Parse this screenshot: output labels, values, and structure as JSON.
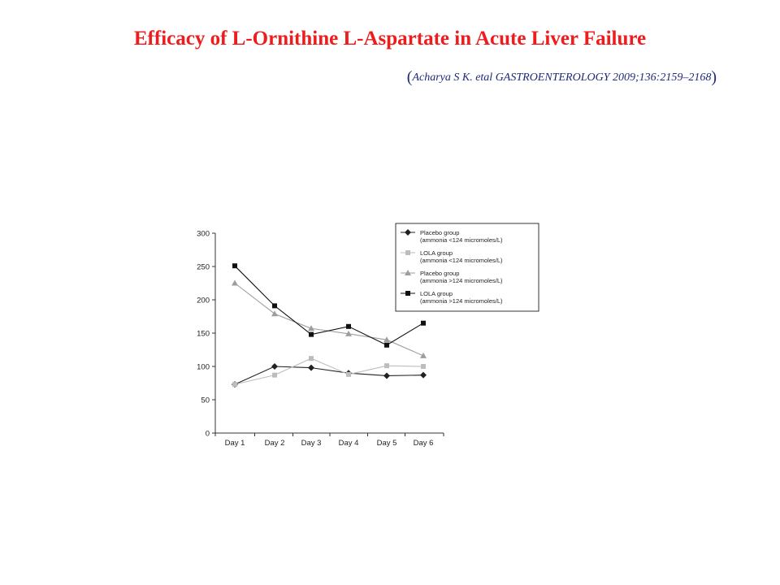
{
  "slide": {
    "title": "Efficacy of L-Ornithine L-Aspartate in Acute Liver Failure",
    "citation": "Acharya S K. etal GASTROENTEROLOGY 2009;136:2159–2168"
  },
  "chart_data": {
    "type": "line",
    "categories": [
      "Day 1",
      "Day 2",
      "Day 3",
      "Day 4",
      "Day 5",
      "Day 6"
    ],
    "ylim": [
      0,
      300
    ],
    "yticks": [
      0,
      50,
      100,
      150,
      200,
      250,
      300
    ],
    "grid": false,
    "legend": "top-right",
    "series": [
      {
        "name": "Placebo group (ammonia <124 micromoles/L)",
        "name_line1": "Placebo group",
        "name_line2": "(ammonia <124 micromoles/L)",
        "marker": "diamond",
        "color": "#222222",
        "values": [
          73,
          100,
          98,
          90,
          86,
          87
        ]
      },
      {
        "name": "LOLA group (ammonia <124 micromoles/L)",
        "name_line1": "LOLA group",
        "name_line2": "(ammonia <124 micromoles/L)",
        "marker": "square",
        "color": "#bdbdbd",
        "values": [
          73,
          87,
          112,
          88,
          101,
          100
        ]
      },
      {
        "name": "Placebo group (ammonia >124 micromoles/L)",
        "name_line1": "Placebo group",
        "name_line2": "(ammonia >124 micromoles/L)",
        "marker": "triangle",
        "color": "#9e9e9e",
        "values": [
          225,
          179,
          157,
          149,
          140,
          116
        ]
      },
      {
        "name": "LOLA group (ammonia >124 micromoles/L)",
        "name_line1": "LOLA group",
        "name_line2": "(ammonia >124 micromoles/L)",
        "marker": "square",
        "color": "#111111",
        "values": [
          251,
          191,
          148,
          160,
          132,
          165
        ]
      }
    ]
  }
}
